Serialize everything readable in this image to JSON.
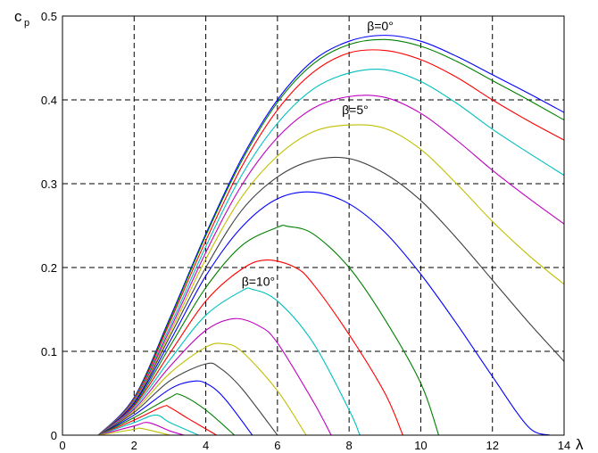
{
  "chart_data": {
    "type": "line",
    "ylabel": "c",
    "ylabel_sub": "p",
    "xlabel": "λ",
    "xlim": [
      0,
      14
    ],
    "ylim": [
      0,
      0.5
    ],
    "xticks": [
      "0",
      "2",
      "4",
      "6",
      "8",
      "10",
      "12",
      "14"
    ],
    "yticks": [
      "0",
      "0.1",
      "0.2",
      "0.3",
      "0.4",
      "0.5"
    ],
    "grid": true,
    "annotations": [
      {
        "text": "β=0°",
        "x": 8.5,
        "y": 0.483
      },
      {
        "text": "β=5°",
        "x": 7.8,
        "y": 0.383
      },
      {
        "text": "β=10°",
        "x": 5.0,
        "y": 0.178
      }
    ],
    "series_colors": [
      "#0000ff",
      "#008000",
      "#ff0000",
      "#00bfbf",
      "#bf00bf",
      "#bfbf00",
      "#404040"
    ],
    "series": [
      {
        "values": [
          [
            1.0,
            0.0
          ],
          [
            2,
            0.045
          ],
          [
            3,
            0.14
          ],
          [
            4,
            0.24
          ],
          [
            5,
            0.33
          ],
          [
            6,
            0.4
          ],
          [
            7,
            0.447
          ],
          [
            8,
            0.47
          ],
          [
            9,
            0.477
          ],
          [
            10,
            0.47
          ],
          [
            11,
            0.452
          ],
          [
            12,
            0.43
          ],
          [
            13,
            0.408
          ],
          [
            14,
            0.385
          ]
        ]
      },
      {
        "values": [
          [
            1.0,
            0.0
          ],
          [
            2,
            0.044
          ],
          [
            3,
            0.138
          ],
          [
            4,
            0.238
          ],
          [
            5,
            0.327
          ],
          [
            6,
            0.397
          ],
          [
            7,
            0.443
          ],
          [
            8,
            0.466
          ],
          [
            9,
            0.472
          ],
          [
            10,
            0.464
          ],
          [
            11,
            0.446
          ],
          [
            12,
            0.423
          ],
          [
            13,
            0.4
          ],
          [
            14,
            0.376
          ]
        ]
      },
      {
        "values": [
          [
            1.0,
            0.0
          ],
          [
            2,
            0.043
          ],
          [
            3,
            0.135
          ],
          [
            4,
            0.232
          ],
          [
            5,
            0.32
          ],
          [
            6,
            0.388
          ],
          [
            7,
            0.433
          ],
          [
            8,
            0.456
          ],
          [
            9,
            0.459
          ],
          [
            10,
            0.448
          ],
          [
            11,
            0.427
          ],
          [
            12,
            0.4
          ],
          [
            13,
            0.375
          ],
          [
            14,
            0.352
          ]
        ]
      },
      {
        "values": [
          [
            1.0,
            0.0
          ],
          [
            2,
            0.042
          ],
          [
            3,
            0.13
          ],
          [
            4,
            0.225
          ],
          [
            5,
            0.31
          ],
          [
            6,
            0.372
          ],
          [
            7,
            0.413
          ],
          [
            8,
            0.432
          ],
          [
            9,
            0.436
          ],
          [
            10,
            0.422
          ],
          [
            11,
            0.396
          ],
          [
            12,
            0.365
          ],
          [
            13,
            0.337
          ],
          [
            14,
            0.31
          ]
        ]
      },
      {
        "values": [
          [
            1.0,
            0.0
          ],
          [
            2,
            0.041
          ],
          [
            3,
            0.126
          ],
          [
            4,
            0.218
          ],
          [
            5,
            0.298
          ],
          [
            6,
            0.355
          ],
          [
            7,
            0.39
          ],
          [
            8,
            0.404
          ],
          [
            9,
            0.403
          ],
          [
            10,
            0.384
          ],
          [
            11,
            0.352
          ],
          [
            12,
            0.316
          ],
          [
            13,
            0.283
          ],
          [
            14,
            0.252
          ]
        ]
      },
      {
        "values": [
          [
            1.0,
            0.0
          ],
          [
            2,
            0.04
          ],
          [
            3,
            0.122
          ],
          [
            4,
            0.21
          ],
          [
            5,
            0.284
          ],
          [
            6,
            0.333
          ],
          [
            7,
            0.362
          ],
          [
            8,
            0.37
          ],
          [
            9,
            0.366
          ],
          [
            10,
            0.341
          ],
          [
            11,
            0.3
          ],
          [
            12,
            0.255
          ],
          [
            13,
            0.215
          ],
          [
            14,
            0.18
          ]
        ]
      },
      {
        "values": [
          [
            1.0,
            0.0
          ],
          [
            2,
            0.039
          ],
          [
            3,
            0.118
          ],
          [
            4,
            0.2
          ],
          [
            5,
            0.268
          ],
          [
            6,
            0.308
          ],
          [
            7,
            0.328
          ],
          [
            8,
            0.33
          ],
          [
            9,
            0.312
          ],
          [
            10,
            0.28
          ],
          [
            11,
            0.235
          ],
          [
            12,
            0.185
          ],
          [
            13,
            0.135
          ],
          [
            14,
            0.088
          ]
        ]
      },
      {
        "values": [
          [
            1.0,
            0.0
          ],
          [
            2,
            0.038
          ],
          [
            3,
            0.112
          ],
          [
            4,
            0.19
          ],
          [
            5,
            0.248
          ],
          [
            6,
            0.282
          ],
          [
            7,
            0.29
          ],
          [
            8,
            0.276
          ],
          [
            9,
            0.242
          ],
          [
            10,
            0.192
          ],
          [
            11,
            0.133
          ],
          [
            12,
            0.07
          ],
          [
            13,
            0.01
          ],
          [
            13.6,
            0.0
          ]
        ]
      },
      {
        "values": [
          [
            1.0,
            0.0
          ],
          [
            2,
            0.036
          ],
          [
            3,
            0.106
          ],
          [
            4,
            0.176
          ],
          [
            5,
            0.226
          ],
          [
            6,
            0.248
          ],
          [
            6.3,
            0.249
          ],
          [
            7,
            0.24
          ],
          [
            8,
            0.2
          ],
          [
            9,
            0.138
          ],
          [
            10,
            0.062
          ],
          [
            10.5,
            0.0
          ]
        ]
      },
      {
        "values": [
          [
            1.0,
            0.0
          ],
          [
            2,
            0.035
          ],
          [
            3,
            0.098
          ],
          [
            4,
            0.16
          ],
          [
            5,
            0.198
          ],
          [
            5.7,
            0.209
          ],
          [
            6.5,
            0.2
          ],
          [
            7,
            0.18
          ],
          [
            8,
            0.12
          ],
          [
            9,
            0.05
          ],
          [
            9.5,
            0.0
          ]
        ]
      },
      {
        "values": [
          [
            1.0,
            0.0
          ],
          [
            2,
            0.033
          ],
          [
            3,
            0.09
          ],
          [
            4,
            0.143
          ],
          [
            5,
            0.172
          ],
          [
            5.3,
            0.174
          ],
          [
            6,
            0.16
          ],
          [
            7,
            0.11
          ],
          [
            8,
            0.03
          ],
          [
            8.3,
            0.0
          ]
        ]
      },
      {
        "values": [
          [
            1.0,
            0.0
          ],
          [
            2,
            0.031
          ],
          [
            3,
            0.082
          ],
          [
            4,
            0.125
          ],
          [
            4.8,
            0.139
          ],
          [
            5.5,
            0.13
          ],
          [
            6,
            0.11
          ],
          [
            7,
            0.04
          ],
          [
            7.5,
            0.0
          ]
        ]
      },
      {
        "values": [
          [
            1.0,
            0.0
          ],
          [
            2,
            0.029
          ],
          [
            3,
            0.074
          ],
          [
            4,
            0.105
          ],
          [
            4.5,
            0.109
          ],
          [
            5,
            0.1
          ],
          [
            6,
            0.053
          ],
          [
            6.8,
            0.0
          ]
        ]
      },
      {
        "values": [
          [
            1.0,
            0.0
          ],
          [
            2,
            0.027
          ],
          [
            3,
            0.065
          ],
          [
            4,
            0.085
          ],
          [
            4.4,
            0.08
          ],
          [
            5,
            0.056
          ],
          [
            6,
            0.0
          ]
        ]
      },
      {
        "values": [
          [
            1.0,
            0.0
          ],
          [
            2,
            0.024
          ],
          [
            3,
            0.055
          ],
          [
            3.6,
            0.064
          ],
          [
            4,
            0.062
          ],
          [
            4.5,
            0.045
          ],
          [
            5.3,
            0.0
          ]
        ]
      },
      {
        "values": [
          [
            1.0,
            0.0
          ],
          [
            2,
            0.021
          ],
          [
            3,
            0.045
          ],
          [
            3.3,
            0.048
          ],
          [
            4,
            0.03
          ],
          [
            4.8,
            0.0
          ]
        ]
      },
      {
        "values": [
          [
            1.0,
            0.0
          ],
          [
            2,
            0.018
          ],
          [
            2.8,
            0.034
          ],
          [
            3,
            0.033
          ],
          [
            3.5,
            0.02
          ],
          [
            4.3,
            0.0
          ]
        ]
      },
      {
        "values": [
          [
            1.0,
            0.0
          ],
          [
            2,
            0.015
          ],
          [
            2.6,
            0.024
          ],
          [
            3,
            0.015
          ],
          [
            3.8,
            0.0
          ]
        ]
      },
      {
        "values": [
          [
            1.0,
            0.0
          ],
          [
            2,
            0.011
          ],
          [
            2.4,
            0.015
          ],
          [
            3,
            0.005
          ],
          [
            3.4,
            0.0
          ]
        ]
      },
      {
        "values": [
          [
            1.0,
            0.0
          ],
          [
            2,
            0.007
          ],
          [
            2.2,
            0.008
          ],
          [
            3,
            0.0
          ]
        ]
      }
    ]
  }
}
